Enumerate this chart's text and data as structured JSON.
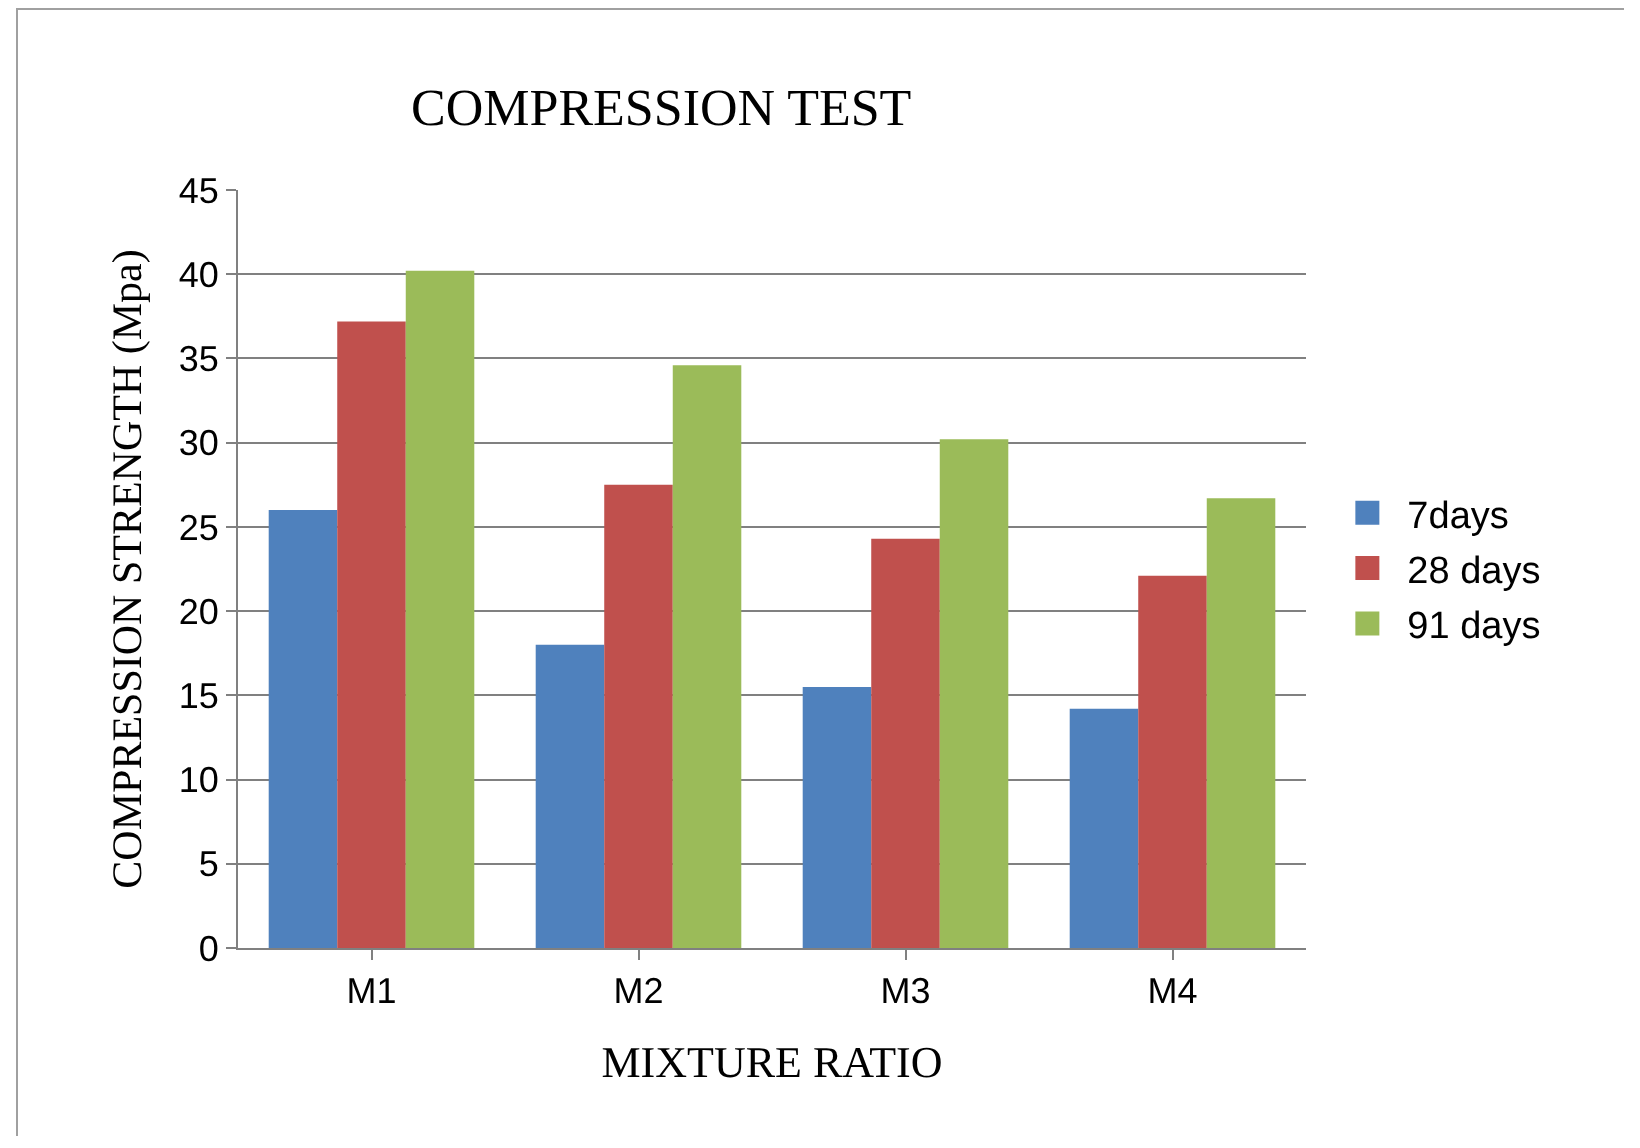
{
  "chart_data": {
    "type": "bar",
    "title": "COMPRESSION TEST",
    "xlabel": "MIXTURE RATIO",
    "ylabel": "COMPRESSION STRENGTH (Mpa)",
    "categories": [
      "M1",
      "M2",
      "M3",
      "M4"
    ],
    "series": [
      {
        "name": "7days",
        "color": "#4f81bd",
        "values": [
          26,
          18,
          15.5,
          14.2
        ]
      },
      {
        "name": "28 days",
        "color": "#c0504d",
        "values": [
          37.2,
          27.5,
          24.3,
          22.1
        ]
      },
      {
        "name": "91 days",
        "color": "#9bbb59",
        "values": [
          40.2,
          34.6,
          30.2,
          26.7
        ]
      }
    ],
    "ylim": [
      0,
      45
    ],
    "yticks": [
      0,
      5,
      10,
      15,
      20,
      25,
      30,
      35,
      40,
      45
    ],
    "grid": "y",
    "legend": "right"
  }
}
